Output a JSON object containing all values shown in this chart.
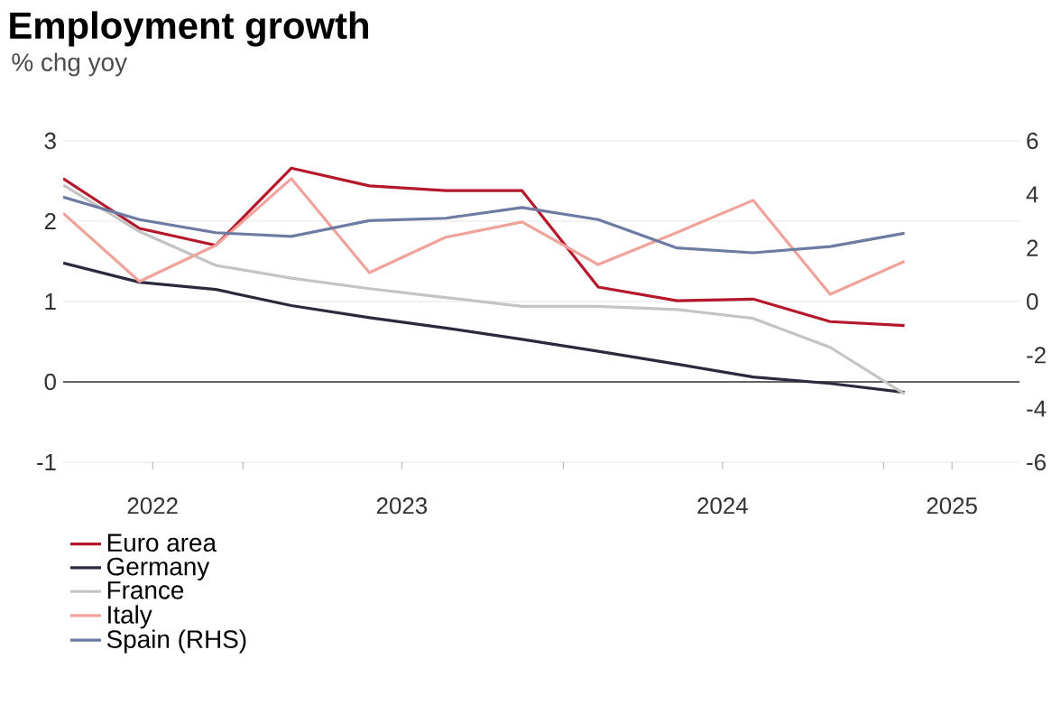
{
  "chart_data": {
    "type": "line",
    "title": "Employment growth",
    "subtitle": "% chg yoy",
    "x": [
      "2022-06-10",
      "2022-09-05",
      "2022-12-01",
      "2023-02-25",
      "2023-05-25",
      "2023-08-20",
      "2023-11-15",
      "2024-02-10",
      "2024-05-10",
      "2024-08-05",
      "2024-11-01",
      "2025-01-25"
    ],
    "xlim": [
      "2022-06-10",
      "2025-06-05"
    ],
    "xticks": [
      {
        "value": "2022-09-20",
        "label": "2022"
      },
      {
        "value": "2023-01-01",
        "label": null
      },
      {
        "value": "2023-07-01",
        "label": "2023"
      },
      {
        "value": "2024-01-01",
        "label": null
      },
      {
        "value": "2024-07-01",
        "label": "2024"
      },
      {
        "value": "2025-01-01",
        "label": null
      },
      {
        "value": "2025-03-20",
        "label": "2025"
      }
    ],
    "ylim": [
      -1,
      3
    ],
    "yticks": [
      -1,
      0,
      1,
      2,
      3
    ],
    "y2lim": [
      -6,
      6
    ],
    "y2ticks": [
      -6,
      -4,
      -2,
      0,
      2,
      4,
      6
    ],
    "series": [
      {
        "name": "Euro area",
        "color": "#b5172b",
        "values": [
          2.53,
          1.91,
          1.7,
          2.66,
          2.44,
          2.38,
          2.38,
          1.18,
          1.01,
          1.03,
          0.75,
          0.7
        ]
      },
      {
        "name": "Germany",
        "color": "#2b2a3d",
        "values": [
          1.48,
          1.24,
          1.15,
          0.95,
          0.8,
          0.67,
          0.53,
          0.38,
          0.22,
          0.06,
          -0.02,
          -0.13
        ]
      },
      {
        "name": "France",
        "color": "#c4c4c4",
        "values": [
          2.45,
          1.87,
          1.45,
          1.29,
          1.16,
          1.05,
          0.94,
          0.94,
          0.9,
          0.79,
          0.43,
          -0.15
        ]
      },
      {
        "name": "Italy",
        "color": "#f0a39b",
        "values": [
          2.1,
          1.25,
          1.7,
          2.53,
          1.36,
          1.8,
          1.99,
          1.46,
          1.86,
          2.26,
          1.09,
          1.5
        ]
      },
      {
        "name": "Spain (RHS)",
        "color": "#6d7ba3",
        "axis": "y2",
        "values": [
          3.9,
          3.06,
          2.57,
          2.43,
          3.02,
          3.11,
          3.51,
          3.06,
          2.0,
          1.82,
          2.05,
          2.55
        ]
      }
    ],
    "ref_lines": [
      {
        "axis": "y",
        "value": 0,
        "color": "#333333"
      }
    ],
    "grid": "y",
    "legend": "bottom left",
    "marker": "none",
    "line_style": "solid"
  }
}
